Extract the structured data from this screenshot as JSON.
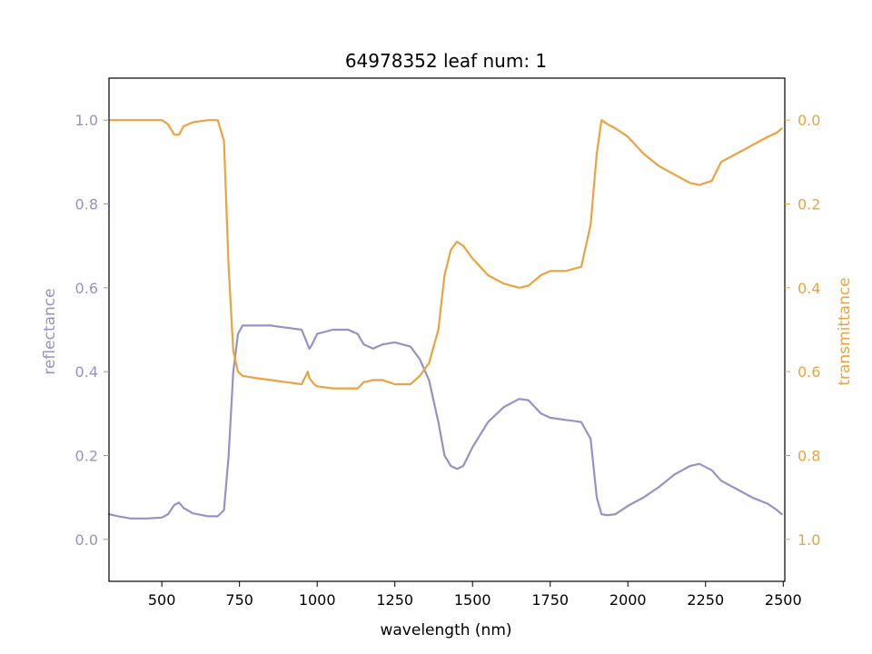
{
  "chart_data": {
    "type": "line",
    "title": "64978352 leaf num: 1",
    "xlabel": "wavelength (nm)",
    "ylabel_left": "reflectance",
    "ylabel_right": "transmittance",
    "xlim": [
      330,
      2505
    ],
    "ylim_left": [
      -0.1,
      1.1
    ],
    "ylim_right": [
      1.1,
      -0.1
    ],
    "right_axis_inverted": true,
    "x_ticks": [
      500,
      750,
      1000,
      1250,
      1500,
      1750,
      2000,
      2250,
      2500
    ],
    "x_tick_labels": [
      "500",
      "750",
      "1000",
      "1250",
      "1500",
      "1750",
      "2000",
      "2250",
      "2500"
    ],
    "y_left_ticks": [
      0.0,
      0.2,
      0.4,
      0.6,
      0.8,
      1.0
    ],
    "y_left_tick_labels": [
      "0.0",
      "0.2",
      "0.4",
      "0.6",
      "0.8",
      "1.0"
    ],
    "y_right_ticks": [
      0.0,
      0.2,
      0.4,
      0.6,
      0.8,
      1.0
    ],
    "y_right_tick_labels": [
      "0.0",
      "0.2",
      "0.4",
      "0.6",
      "0.8",
      "1.0"
    ],
    "grid": false,
    "colors": {
      "reflectance": "#9891c6",
      "transmittance": "#eba33f",
      "axes": "#000000"
    },
    "series": [
      {
        "axis": "left",
        "x": [
          330,
          360,
          400,
          450,
          500,
          520,
          540,
          555,
          570,
          600,
          650,
          680,
          700,
          715,
          730,
          745,
          760,
          800,
          850,
          900,
          950,
          975,
          980,
          1000,
          1050,
          1100,
          1130,
          1150,
          1180,
          1210,
          1250,
          1300,
          1330,
          1360,
          1390,
          1410,
          1430,
          1450,
          1470,
          1500,
          1550,
          1600,
          1650,
          1680,
          1720,
          1750,
          1800,
          1850,
          1880,
          1900,
          1915,
          1935,
          1960,
          2000,
          2050,
          2100,
          2150,
          2200,
          2230,
          2270,
          2300,
          2350,
          2400,
          2450,
          2480,
          2495
        ],
        "values": [
          0.06,
          0.055,
          0.05,
          0.05,
          0.052,
          0.06,
          0.082,
          0.088,
          0.075,
          0.062,
          0.055,
          0.055,
          0.07,
          0.2,
          0.4,
          0.49,
          0.51,
          0.51,
          0.51,
          0.505,
          0.5,
          0.455,
          0.46,
          0.49,
          0.5,
          0.5,
          0.49,
          0.465,
          0.455,
          0.465,
          0.47,
          0.46,
          0.43,
          0.38,
          0.28,
          0.2,
          0.175,
          0.168,
          0.175,
          0.22,
          0.28,
          0.315,
          0.335,
          0.332,
          0.3,
          0.29,
          0.285,
          0.28,
          0.24,
          0.1,
          0.06,
          0.058,
          0.06,
          0.08,
          0.1,
          0.125,
          0.155,
          0.175,
          0.18,
          0.165,
          0.14,
          0.12,
          0.1,
          0.085,
          0.07,
          0.06
        ]
      },
      {
        "axis": "right",
        "x": [
          330,
          360,
          400,
          450,
          500,
          520,
          540,
          555,
          570,
          600,
          650,
          680,
          700,
          715,
          730,
          745,
          760,
          800,
          850,
          900,
          950,
          970,
          975,
          990,
          1000,
          1050,
          1100,
          1130,
          1150,
          1180,
          1210,
          1250,
          1300,
          1330,
          1360,
          1390,
          1410,
          1430,
          1450,
          1470,
          1500,
          1550,
          1600,
          1650,
          1680,
          1720,
          1750,
          1800,
          1850,
          1880,
          1900,
          1915,
          1935,
          1960,
          2000,
          2050,
          2100,
          2150,
          2200,
          2230,
          2270,
          2300,
          2350,
          2400,
          2450,
          2480,
          2495
        ],
        "values": [
          0.0,
          0.0,
          0.0,
          0.0,
          0.0,
          0.01,
          0.035,
          0.035,
          0.015,
          0.005,
          0.0,
          0.0,
          0.05,
          0.35,
          0.55,
          0.6,
          0.61,
          0.615,
          0.62,
          0.625,
          0.63,
          0.6,
          0.615,
          0.63,
          0.635,
          0.64,
          0.64,
          0.64,
          0.625,
          0.62,
          0.62,
          0.63,
          0.63,
          0.61,
          0.58,
          0.5,
          0.37,
          0.31,
          0.29,
          0.3,
          0.33,
          0.37,
          0.39,
          0.4,
          0.395,
          0.37,
          0.36,
          0.36,
          0.35,
          0.25,
          0.08,
          0.0,
          0.01,
          0.02,
          0.04,
          0.08,
          0.11,
          0.13,
          0.15,
          0.155,
          0.145,
          0.1,
          0.08,
          0.06,
          0.04,
          0.03,
          0.02
        ]
      }
    ]
  }
}
